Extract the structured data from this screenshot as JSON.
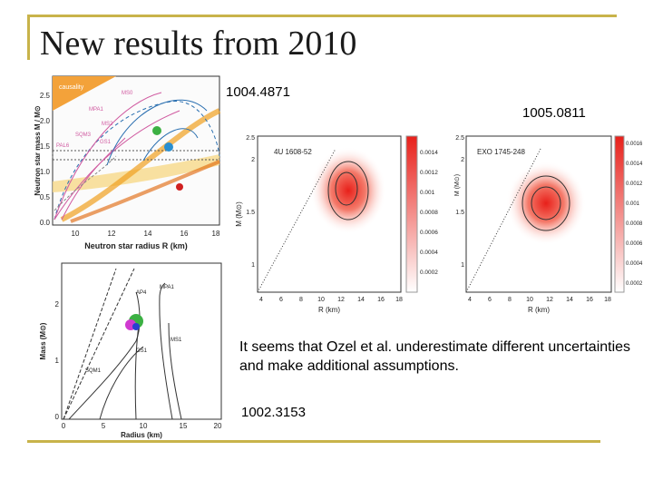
{
  "slide": {
    "title": "New results from 2010"
  },
  "refs": {
    "ref1": "1004.4871",
    "ref2": "1005.0811",
    "ref3": "1002.3153"
  },
  "note": {
    "text": "It seems that Ozel et al. underestimate different uncertainties and make additional assumptions."
  },
  "fig1": {
    "causality": "causality",
    "ylabel": "Neutron star mass M / M⊙",
    "xlabel": "Neutron star radius R (km)",
    "yticks": [
      "0.0",
      "0.5",
      "1.0",
      "1.5",
      "2.0",
      "2.5"
    ],
    "xticks": [
      "10",
      "12",
      "14",
      "16",
      "18"
    ],
    "curves": [
      "MS0",
      "MS2",
      "MPA1",
      "SQM3",
      "GS1",
      "PAL6"
    ]
  },
  "fig2": {
    "source": "4U 1608-52",
    "xlabel": "R (km)",
    "ylabel": "M (M⊙)",
    "xticks": [
      "4",
      "6",
      "8",
      "10",
      "12",
      "14",
      "16",
      "18"
    ],
    "yticks": [
      "1",
      "1.5",
      "2",
      "2.5"
    ],
    "cb": [
      "0.0014",
      "0.0012",
      "0.001",
      "0.0008",
      "0.0006",
      "0.0004",
      "0.0002"
    ]
  },
  "fig3": {
    "source": "EXO 1745-248",
    "xlabel": "R (km)",
    "ylabel": "M (M⊙)",
    "xticks": [
      "4",
      "6",
      "8",
      "10",
      "12",
      "14",
      "16",
      "18"
    ],
    "yticks": [
      "1",
      "1.5",
      "2",
      "2.5"
    ],
    "cb": [
      "0.0016",
      "0.0014",
      "0.0012",
      "0.001",
      "0.0008",
      "0.0006",
      "0.0004",
      "0.0002"
    ]
  },
  "fig4": {
    "ylabel": "Mass (M⊙)",
    "xlabel": "Radius (km)",
    "xticks": [
      "0",
      "5",
      "10",
      "15",
      "20"
    ],
    "yticks": [
      "0",
      "1",
      "2"
    ],
    "curves": [
      "AP4",
      "MPA1",
      "MS1",
      "GS1",
      "SQM1"
    ]
  }
}
